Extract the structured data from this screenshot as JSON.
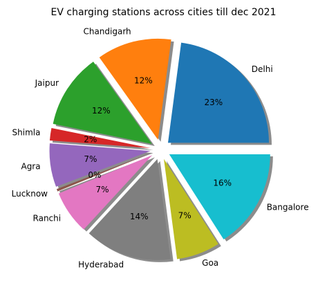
{
  "chart_data": {
    "type": "pie",
    "title": "EV charging stations across cities till dec 2021",
    "start_angle_deg": 0,
    "direction": "counterclockwise",
    "exploded": true,
    "shadow": true,
    "slices": [
      {
        "label": "Delhi",
        "value": 23,
        "pct_label": "23%",
        "color": "#1f77b4"
      },
      {
        "label": "Chandigarh",
        "value": 12,
        "pct_label": "12%",
        "color": "#ff7f0e"
      },
      {
        "label": "Jaipur",
        "value": 12,
        "pct_label": "12%",
        "color": "#2ca02c"
      },
      {
        "label": "Shimla",
        "value": 2,
        "pct_label": "2%",
        "color": "#d62728"
      },
      {
        "label": "Agra",
        "value": 7,
        "pct_label": "7%",
        "color": "#9467bd"
      },
      {
        "label": "Lucknow",
        "value": 0.4,
        "pct_label": "0%",
        "color": "#8c564b"
      },
      {
        "label": "Ranchi",
        "value": 7,
        "pct_label": "7%",
        "color": "#e377c2"
      },
      {
        "label": "Hyderabad",
        "value": 14,
        "pct_label": "14%",
        "color": "#7f7f7f"
      },
      {
        "label": "Goa",
        "value": 7,
        "pct_label": "7%",
        "color": "#bcbd22"
      },
      {
        "label": "Bangalore",
        "value": 16,
        "pct_label": "16%",
        "color": "#17becf"
      }
    ]
  }
}
